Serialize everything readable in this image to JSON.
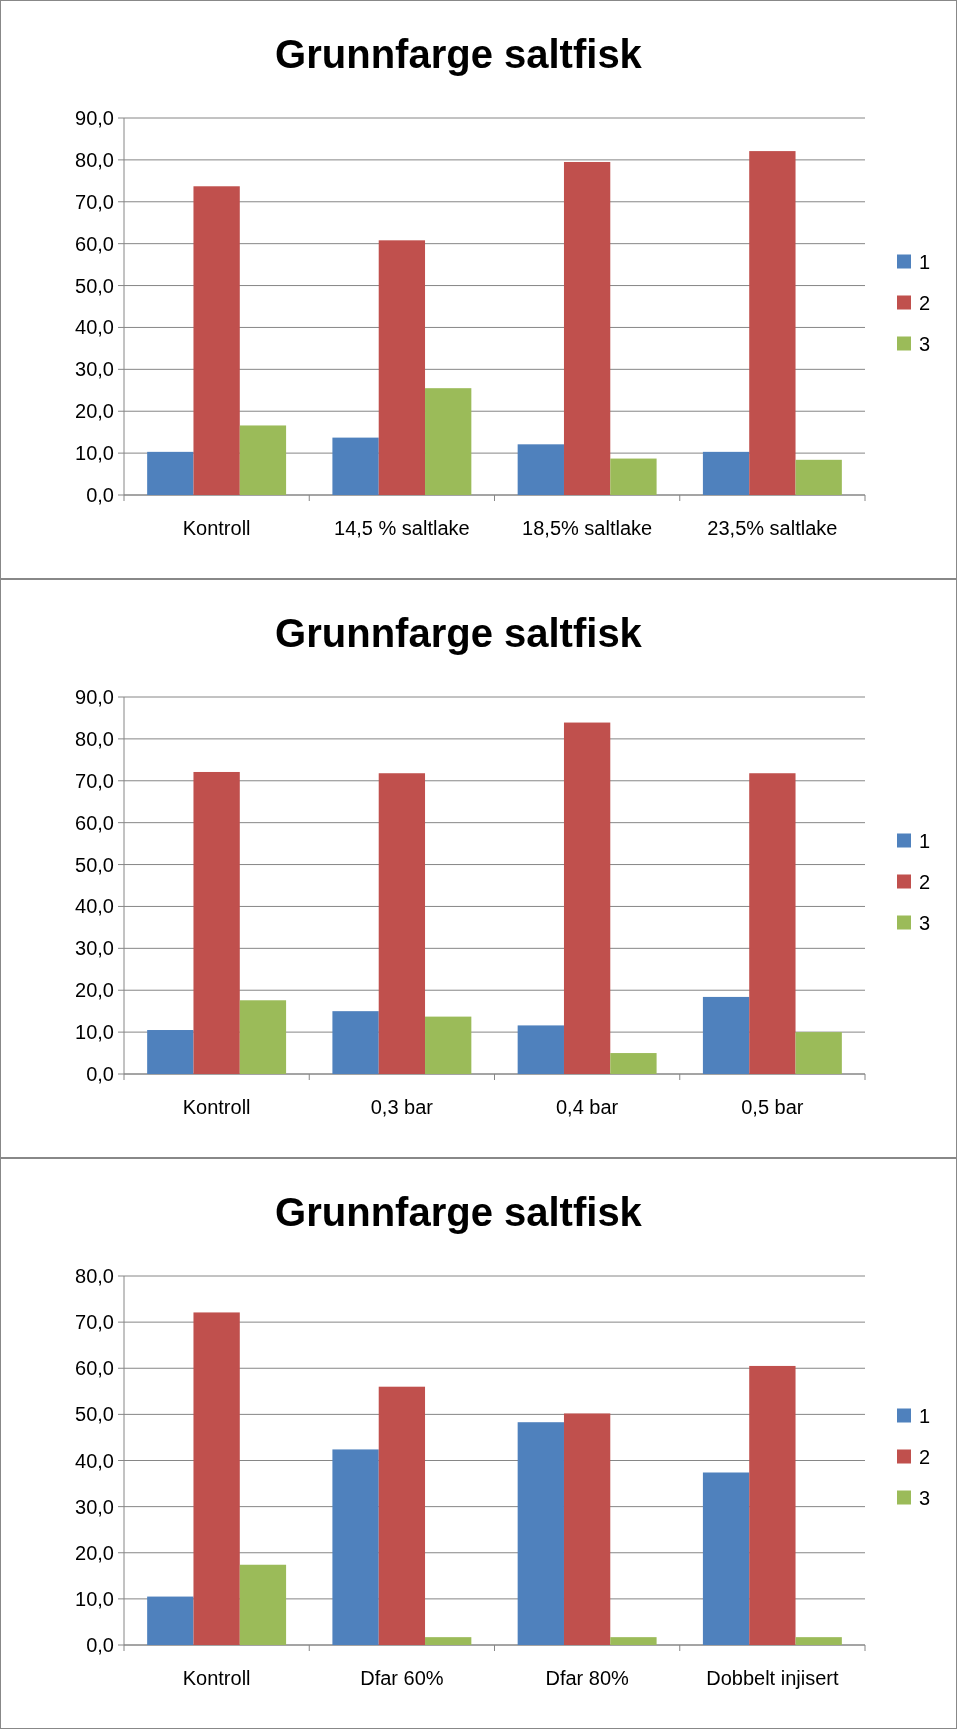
{
  "chart_data": [
    {
      "type": "bar",
      "title": "Grunnfarge saltfisk",
      "categories": [
        "Kontroll",
        "14,5 % saltlake",
        "18,5% saltlake",
        "23,5% saltlake"
      ],
      "series": [
        {
          "name": "1",
          "color": "#4f81bd",
          "values": [
            10.3,
            13.7,
            12.1,
            10.3
          ]
        },
        {
          "name": "2",
          "color": "#c0504d",
          "values": [
            73.7,
            60.8,
            79.5,
            82.1
          ]
        },
        {
          "name": "3",
          "color": "#9bbb59",
          "values": [
            16.6,
            25.5,
            8.7,
            8.4
          ]
        }
      ],
      "ylim": [
        0,
        90
      ],
      "yticks": [
        {
          "value": 0,
          "label": "0,0"
        },
        {
          "value": 10,
          "label": "10,0"
        },
        {
          "value": 20,
          "label": "20,0"
        },
        {
          "value": 30,
          "label": "30,0"
        },
        {
          "value": 40,
          "label": "40,0"
        },
        {
          "value": 50,
          "label": "50,0"
        },
        {
          "value": 60,
          "label": "60,0"
        },
        {
          "value": 70,
          "label": "70,0"
        },
        {
          "value": 80,
          "label": "80,0"
        },
        {
          "value": 90,
          "label": "90,0"
        }
      ],
      "grid": "y",
      "legend": "right"
    },
    {
      "type": "bar",
      "title": "Grunnfarge saltfisk",
      "categories": [
        "Kontroll",
        "0,3 bar",
        "0,4 bar",
        "0,5 bar"
      ],
      "series": [
        {
          "name": "1",
          "color": "#4f81bd",
          "values": [
            10.5,
            15.0,
            11.6,
            18.4
          ]
        },
        {
          "name": "2",
          "color": "#c0504d",
          "values": [
            72.1,
            71.8,
            83.9,
            71.8
          ]
        },
        {
          "name": "3",
          "color": "#9bbb59",
          "values": [
            17.6,
            13.7,
            5.0,
            10.0
          ]
        }
      ],
      "ylim": [
        0,
        90
      ],
      "yticks": [
        {
          "value": 0,
          "label": "0,0"
        },
        {
          "value": 10,
          "label": "10,0"
        },
        {
          "value": 20,
          "label": "20,0"
        },
        {
          "value": 30,
          "label": "30,0"
        },
        {
          "value": 40,
          "label": "40,0"
        },
        {
          "value": 50,
          "label": "50,0"
        },
        {
          "value": 60,
          "label": "60,0"
        },
        {
          "value": 70,
          "label": "70,0"
        },
        {
          "value": 80,
          "label": "80,0"
        },
        {
          "value": 90,
          "label": "90,0"
        }
      ],
      "grid": "y",
      "legend": "right"
    },
    {
      "type": "bar",
      "title": "Grunnfarge saltfisk",
      "categories": [
        "Kontroll",
        "Dfar 60%",
        "Dfar 80%",
        "Dobbelt injisert"
      ],
      "series": [
        {
          "name": "1",
          "color": "#4f81bd",
          "values": [
            10.5,
            42.4,
            48.3,
            37.4
          ]
        },
        {
          "name": "2",
          "color": "#c0504d",
          "values": [
            72.1,
            56.0,
            50.2,
            60.5
          ]
        },
        {
          "name": "3",
          "color": "#9bbb59",
          "values": [
            17.4,
            1.7,
            1.7,
            1.7
          ]
        }
      ],
      "ylim": [
        0,
        80
      ],
      "yticks": [
        {
          "value": 0,
          "label": "0,0"
        },
        {
          "value": 10,
          "label": "10,0"
        },
        {
          "value": 20,
          "label": "20,0"
        },
        {
          "value": 30,
          "label": "30,0"
        },
        {
          "value": 40,
          "label": "40,0"
        },
        {
          "value": 50,
          "label": "50,0"
        },
        {
          "value": 60,
          "label": "60,0"
        },
        {
          "value": 70,
          "label": "70,0"
        },
        {
          "value": 80,
          "label": "80,0"
        }
      ],
      "grid": "y",
      "legend": "right"
    }
  ]
}
